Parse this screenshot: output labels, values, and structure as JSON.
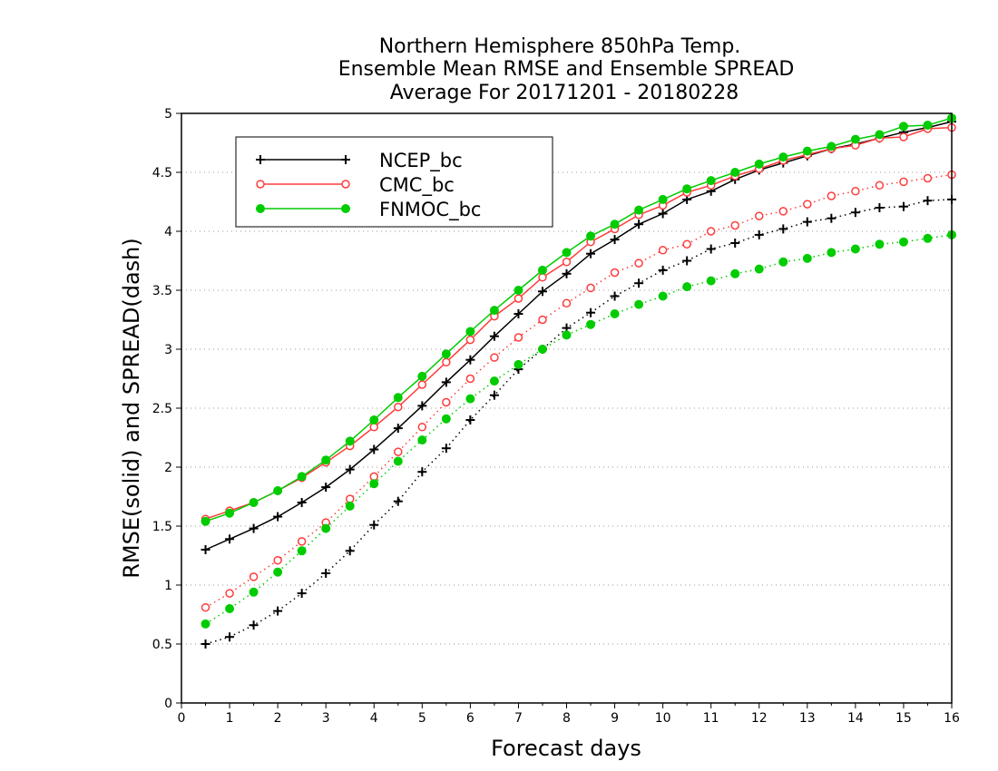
{
  "chart_data": {
    "type": "line",
    "title": [
      "Northern Hemisphere 850hPa Temp.",
      "Ensemble Mean RMSE and Ensemble SPREAD",
      "Average For 20171201 - 20180228"
    ],
    "xlabel": "Forecast days",
    "ylabel": "RMSE(solid) and SPREAD(dash)",
    "xlim": [
      0,
      16
    ],
    "ylim": [
      0,
      5
    ],
    "xticks": [
      0,
      1,
      2,
      3,
      4,
      5,
      6,
      7,
      8,
      9,
      10,
      11,
      12,
      13,
      14,
      15,
      16
    ],
    "yticks": [
      0,
      0.5,
      1,
      1.5,
      2,
      2.5,
      3,
      3.5,
      4,
      4.5,
      5
    ],
    "grid": "horizontal dotted",
    "legend_position": "top-left",
    "x": [
      0.5,
      1,
      1.5,
      2,
      2.5,
      3,
      3.5,
      4,
      4.5,
      5,
      5.5,
      6,
      6.5,
      7,
      7.5,
      8,
      8.5,
      9,
      9.5,
      10,
      10.5,
      11,
      11.5,
      12,
      12.5,
      13,
      13.5,
      14,
      14.5,
      15,
      15.5,
      16
    ],
    "series": [
      {
        "name": "NCEP_bc",
        "metric": "RMSE",
        "style": "solid",
        "marker": "plus",
        "color": "#000000",
        "values": [
          1.3,
          1.39,
          1.48,
          1.58,
          1.7,
          1.83,
          1.98,
          2.15,
          2.33,
          2.52,
          2.72,
          2.91,
          3.11,
          3.3,
          3.49,
          3.64,
          3.81,
          3.93,
          4.06,
          4.15,
          4.27,
          4.34,
          4.44,
          4.52,
          4.58,
          4.64,
          4.7,
          4.74,
          4.79,
          4.84,
          4.88,
          4.93
        ]
      },
      {
        "name": "CMC_bc",
        "metric": "RMSE",
        "style": "solid",
        "marker": "open-circle",
        "color": "#ff3b3b",
        "values": [
          1.56,
          1.63,
          1.7,
          1.8,
          1.91,
          2.04,
          2.18,
          2.34,
          2.51,
          2.7,
          2.89,
          3.08,
          3.28,
          3.43,
          3.61,
          3.74,
          3.91,
          4.02,
          4.14,
          4.22,
          4.33,
          4.39,
          4.47,
          4.53,
          4.6,
          4.65,
          4.7,
          4.73,
          4.79,
          4.8,
          4.87,
          4.88
        ]
      },
      {
        "name": "FNMOC_bc",
        "metric": "RMSE",
        "style": "solid",
        "marker": "filled-circle",
        "color": "#00cc00",
        "values": [
          1.54,
          1.61,
          1.7,
          1.8,
          1.92,
          2.06,
          2.22,
          2.4,
          2.59,
          2.77,
          2.96,
          3.15,
          3.33,
          3.5,
          3.67,
          3.82,
          3.96,
          4.06,
          4.18,
          4.27,
          4.36,
          4.43,
          4.5,
          4.57,
          4.63,
          4.68,
          4.72,
          4.78,
          4.82,
          4.89,
          4.9,
          4.96
        ]
      },
      {
        "name": "NCEP_bc",
        "metric": "SPREAD",
        "style": "dotted",
        "marker": "plus",
        "color": "#000000",
        "values": [
          0.5,
          0.56,
          0.66,
          0.78,
          0.93,
          1.1,
          1.29,
          1.51,
          1.71,
          1.96,
          2.16,
          2.4,
          2.61,
          2.83,
          3.0,
          3.18,
          3.31,
          3.45,
          3.56,
          3.67,
          3.75,
          3.85,
          3.9,
          3.97,
          4.02,
          4.08,
          4.11,
          4.16,
          4.2,
          4.21,
          4.26,
          4.27
        ]
      },
      {
        "name": "CMC_bc",
        "metric": "SPREAD",
        "style": "dotted",
        "marker": "open-circle",
        "color": "#ff3b3b",
        "values": [
          0.81,
          0.93,
          1.07,
          1.21,
          1.37,
          1.53,
          1.73,
          1.92,
          2.13,
          2.34,
          2.55,
          2.75,
          2.93,
          3.1,
          3.25,
          3.39,
          3.52,
          3.65,
          3.73,
          3.84,
          3.89,
          4.0,
          4.05,
          4.13,
          4.17,
          4.23,
          4.3,
          4.34,
          4.39,
          4.42,
          4.45,
          4.48
        ]
      },
      {
        "name": "FNMOC_bc",
        "metric": "SPREAD",
        "style": "dotted",
        "marker": "filled-circle",
        "color": "#00cc00",
        "values": [
          0.67,
          0.8,
          0.94,
          1.11,
          1.29,
          1.48,
          1.67,
          1.86,
          2.05,
          2.23,
          2.41,
          2.58,
          2.73,
          2.87,
          3.0,
          3.12,
          3.21,
          3.3,
          3.38,
          3.45,
          3.53,
          3.58,
          3.64,
          3.68,
          3.74,
          3.77,
          3.82,
          3.85,
          3.89,
          3.91,
          3.94,
          3.97
        ]
      }
    ],
    "legend": [
      {
        "label": "NCEP_bc",
        "marker": "plus",
        "color": "#000000"
      },
      {
        "label": "CMC_bc",
        "marker": "open-circle",
        "color": "#ff3b3b"
      },
      {
        "label": "FNMOC_bc",
        "marker": "filled-circle",
        "color": "#00cc00"
      }
    ]
  }
}
